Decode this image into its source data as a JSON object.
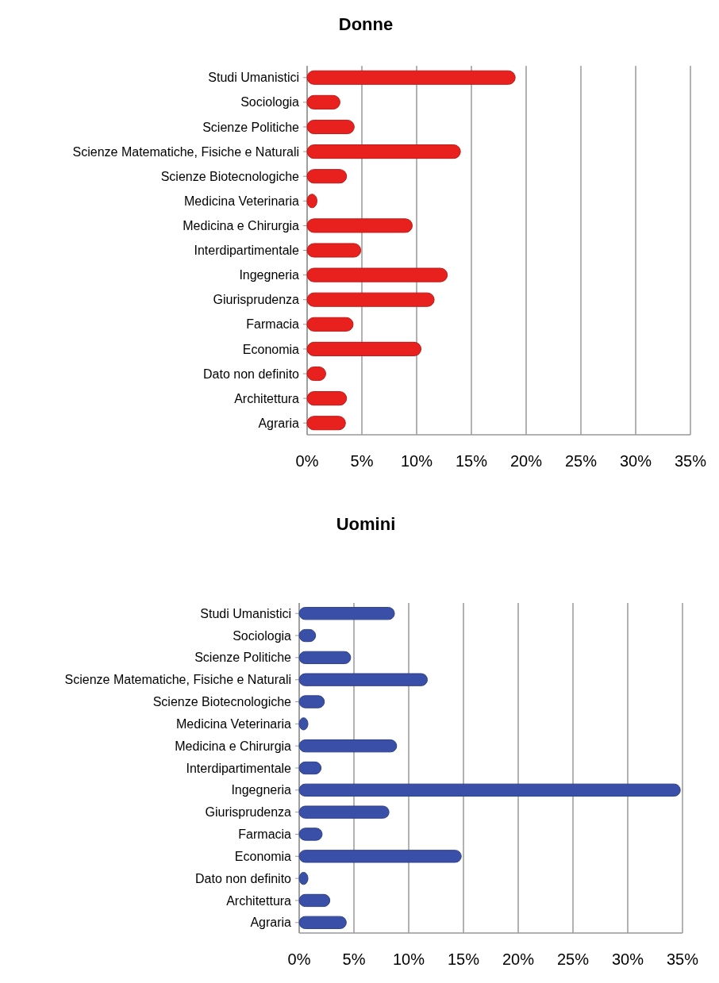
{
  "chart_data": [
    {
      "type": "bar",
      "title": "Donne",
      "orientation": "horizontal",
      "categories": [
        "Studi Umanistici",
        "Sociologia",
        "Scienze Politiche",
        "Scienze Matematiche, Fisiche e Naturali",
        "Scienze Biotecnologiche",
        "Medicina Veterinaria",
        "Medicina e Chirurgia",
        "Interdipartimentale",
        "Ingegneria",
        "Giurisprudenza",
        "Farmacia",
        "Economia",
        "Dato non definito",
        "Architettura",
        "Agraria"
      ],
      "values": [
        19.0,
        3.0,
        4.3,
        14.0,
        3.6,
        0.9,
        9.6,
        4.9,
        12.8,
        11.6,
        4.2,
        10.4,
        1.7,
        3.6,
        3.5
      ],
      "color": "#e8201e",
      "xlim": [
        0,
        35
      ],
      "xticks": [
        {
          "value": 0,
          "label": "0%"
        },
        {
          "value": 5,
          "label": "5%"
        },
        {
          "value": 10,
          "label": "10%"
        },
        {
          "value": 15,
          "label": "15%"
        },
        {
          "value": 20,
          "label": "20%"
        },
        {
          "value": 25,
          "label": "25%"
        },
        {
          "value": 30,
          "label": "30%"
        },
        {
          "value": 35,
          "label": "35%"
        }
      ],
      "grid": "x"
    },
    {
      "type": "bar",
      "title": "Uomini",
      "orientation": "horizontal",
      "categories": [
        "Studi Umanistici",
        "Sociologia",
        "Scienze Politiche",
        "Scienze Matematiche, Fisiche e Naturali",
        "Scienze Biotecnologiche",
        "Medicina Veterinaria",
        "Medicina e Chirurgia",
        "Interdipartimentale",
        "Ingegneria",
        "Giurisprudenza",
        "Farmacia",
        "Economia",
        "Dato non definito",
        "Architettura",
        "Agraria"
      ],
      "values": [
        8.7,
        1.5,
        4.7,
        11.7,
        2.3,
        0.8,
        8.9,
        2.0,
        34.8,
        8.2,
        2.1,
        14.8,
        0.8,
        2.8,
        4.3
      ],
      "color": "#3a4fa8",
      "xlim": [
        0,
        35
      ],
      "xticks": [
        {
          "value": 0,
          "label": "0%"
        },
        {
          "value": 5,
          "label": "5%"
        },
        {
          "value": 10,
          "label": "10%"
        },
        {
          "value": 15,
          "label": "15%"
        },
        {
          "value": 20,
          "label": "20%"
        },
        {
          "value": 25,
          "label": "25%"
        },
        {
          "value": 30,
          "label": "30%"
        },
        {
          "value": 35,
          "label": "35%"
        }
      ],
      "grid": "x"
    }
  ]
}
